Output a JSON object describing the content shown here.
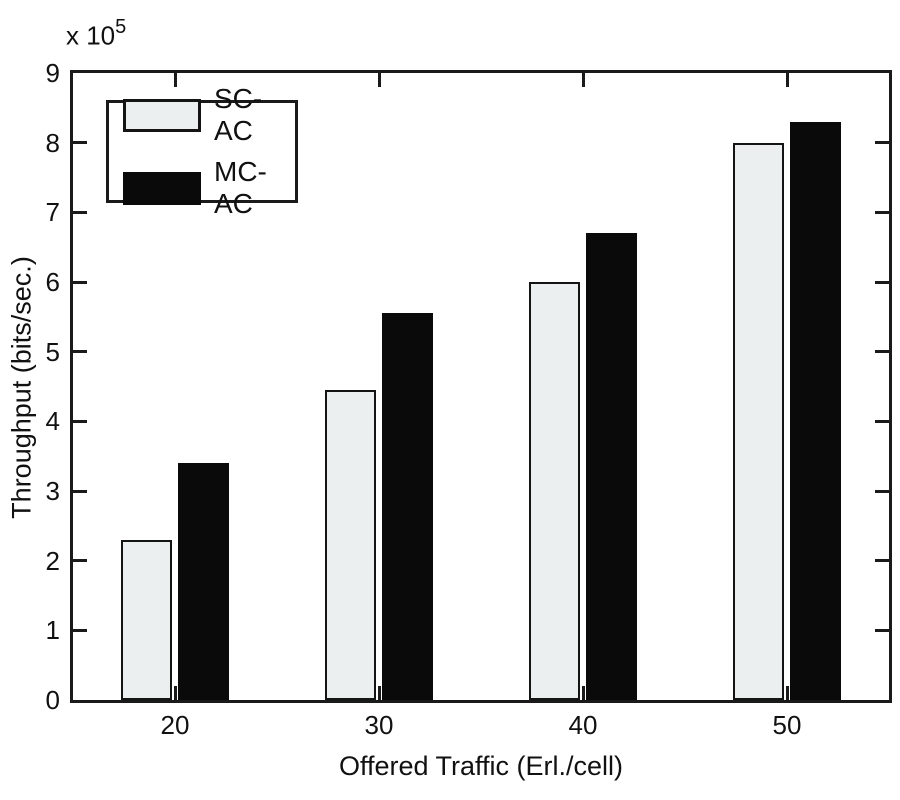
{
  "chart_data": {
    "type": "bar",
    "title": "",
    "xlabel": "Offered Traffic (Erl./cell)",
    "ylabel": "Throughput (bits/sec.)",
    "y_exponent": {
      "base": "x 10",
      "power": "5"
    },
    "categories": [
      20,
      30,
      40,
      50
    ],
    "series": [
      {
        "name": "SC-AC",
        "values": [
          2.3,
          4.45,
          6.0,
          8.0
        ],
        "fill": "#ebefef",
        "stroke": "#141414"
      },
      {
        "name": "MC-AC",
        "values": [
          3.4,
          5.55,
          6.7,
          8.3
        ],
        "fill": "#0a0a0a",
        "stroke": "#0a0a0a"
      }
    ],
    "ylim": [
      0,
      9
    ],
    "ytick_step": 1,
    "xticks": [
      "20",
      "30",
      "40",
      "50"
    ],
    "grid": false,
    "legend_position": "top-left",
    "axis_color": "#1a1a1a",
    "background": "#ffffff"
  }
}
